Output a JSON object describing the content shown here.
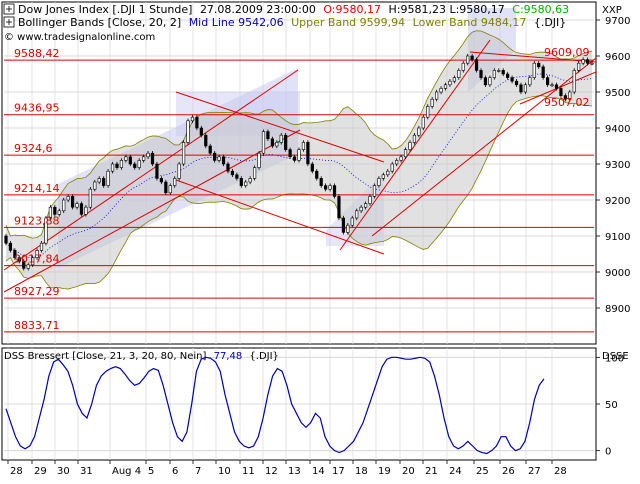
{
  "header": {
    "line1_title": "Dow Jones Index [.DJI  1 Stunde]",
    "line1_datetime": "27.08.2009 23:00:00",
    "line1_open": "O:9580,17",
    "line1_high": "H:9581,23",
    "line1_low": "L:9580,17",
    "line1_close": "C:9580,63",
    "line2_title": "Bollinger Bands [Close, 20, 2]",
    "line2_mid": "Mid Line 9542,06",
    "line2_upper": "Upper Band 9599,94",
    "line2_lower": "Lower Band 9484,17",
    "line2_symbol": "{.DJI}",
    "line3_copyright": "© www.tradesignalonline.com"
  },
  "main_pane": {
    "axis_label": "XXP",
    "ylim": [
      8800,
      9750
    ],
    "y_ticks": [
      9700,
      9600,
      9500,
      9400,
      9300,
      9200,
      9100,
      9000,
      8900
    ],
    "y_tick_labels": [
      "9700",
      "9600",
      "9500",
      "9400",
      "9300",
      "9200",
      "9100",
      "9000",
      "8900"
    ],
    "horizontal_levels": [
      {
        "value": 9588.42,
        "label": "9588,42"
      },
      {
        "value": 9436.95,
        "label": "9436,95"
      },
      {
        "value": 9324.6,
        "label": "9324,6"
      },
      {
        "value": 9214.14,
        "label": "9214,14"
      },
      {
        "value": 9123.88,
        "label": "9123,88"
      },
      {
        "value": 9017.84,
        "label": "9017,84"
      },
      {
        "value": 8927.29,
        "label": "8927,29"
      },
      {
        "value": 8833.71,
        "label": "8833,71"
      }
    ],
    "trend_labels": [
      {
        "value": 9609.09,
        "label": "9609,09"
      },
      {
        "value": 9507.02,
        "label": "9507,02"
      }
    ]
  },
  "lower_pane": {
    "indicator_label": "DSS Bressert [Close, 21, 3, 20, 80, Nein]",
    "indicator_value": "77,48",
    "indicator_symbol": "{.DJI}",
    "axis_label": "DSSE",
    "ylim": [
      -10,
      110
    ],
    "y_ticks": [
      100,
      50,
      0
    ],
    "y_tick_labels": [
      "100",
      "50",
      "0"
    ]
  },
  "x_axis": {
    "labels": [
      "28",
      "29",
      "30",
      "31",
      "Aug 4",
      "5",
      "6",
      "7",
      "10",
      "11",
      "12",
      "13",
      "14",
      "17",
      "18",
      "19",
      "20",
      "21",
      "24",
      "25",
      "26",
      "27",
      "28"
    ]
  },
  "chart_data": [
    {
      "type": "candlestick",
      "title": "Dow Jones Index [.DJI  1 Stunde]",
      "ylim": [
        8800,
        9750
      ],
      "x": [
        "28",
        "28",
        "28",
        "28",
        "28",
        "28",
        "29",
        "29",
        "29",
        "29",
        "29",
        "29",
        "30",
        "30",
        "30",
        "30",
        "30",
        "30",
        "31",
        "31",
        "31",
        "31",
        "31",
        "31",
        "Aug 4",
        "Aug 4",
        "Aug 4",
        "Aug 4",
        "Aug 4",
        "Aug 4",
        "5",
        "5",
        "5",
        "5",
        "5",
        "5",
        "6",
        "6",
        "6",
        "6",
        "6",
        "6",
        "7",
        "7",
        "7",
        "7",
        "7",
        "7",
        "10",
        "10",
        "10",
        "10",
        "10",
        "10",
        "11",
        "11",
        "11",
        "11",
        "11",
        "11",
        "12",
        "12",
        "12",
        "12",
        "12",
        "12",
        "13",
        "13",
        "13",
        "13",
        "13",
        "13",
        "14",
        "14",
        "14",
        "14",
        "14",
        "14",
        "17",
        "17",
        "17",
        "17",
        "17",
        "17",
        "18",
        "18",
        "18",
        "18",
        "18",
        "18",
        "19",
        "19",
        "19",
        "19",
        "19",
        "19",
        "20",
        "20",
        "20",
        "20",
        "20",
        "20",
        "21",
        "21",
        "21",
        "21",
        "21",
        "21",
        "24",
        "24",
        "24",
        "24",
        "24",
        "24",
        "25",
        "25",
        "25",
        "25",
        "25",
        "25",
        "26",
        "26",
        "26",
        "26",
        "26",
        "26",
        "27",
        "27",
        "27",
        "27",
        "27",
        "27",
        "28"
      ],
      "close": [
        9080,
        9060,
        9040,
        9030,
        9010,
        9020,
        9040,
        9060,
        9080,
        9150,
        9180,
        9160,
        9170,
        9200,
        9210,
        9180,
        9190,
        9160,
        9180,
        9230,
        9250,
        9260,
        9240,
        9280,
        9300,
        9290,
        9310,
        9320,
        9300,
        9290,
        9310,
        9320,
        9330,
        9300,
        9260,
        9250,
        9220,
        9240,
        9260,
        9300,
        9360,
        9420,
        9430,
        9400,
        9380,
        9350,
        9330,
        9310,
        9320,
        9300,
        9280,
        9270,
        9260,
        9240,
        9250,
        9260,
        9290,
        9330,
        9390,
        9370,
        9350,
        9360,
        9380,
        9340,
        9320,
        9310,
        9340,
        9360,
        9300,
        9280,
        9260,
        9240,
        9230,
        9240,
        9210,
        9150,
        9110,
        9130,
        9150,
        9170,
        9180,
        9190,
        9210,
        9240,
        9260,
        9270,
        9280,
        9300,
        9310,
        9320,
        9340,
        9360,
        9380,
        9400,
        9430,
        9460,
        9480,
        9500,
        9510,
        9520,
        9530,
        9540,
        9560,
        9580,
        9600,
        9590,
        9560,
        9540,
        9520,
        9540,
        9560,
        9560,
        9550,
        9540,
        9530,
        9520,
        9500,
        9520,
        9540,
        9580,
        9570,
        9540,
        9520,
        9520,
        9510,
        9490,
        9480,
        9500,
        9560,
        9580,
        9590,
        9580,
        9580
      ],
      "open": [
        9100,
        9080,
        9060,
        9040,
        9030,
        9010,
        9020,
        9040,
        9060,
        9080,
        9150,
        9180,
        9160,
        9170,
        9200,
        9210,
        9180,
        9190,
        9160,
        9180,
        9230,
        9250,
        9260,
        9240,
        9280,
        9300,
        9290,
        9310,
        9320,
        9300,
        9290,
        9310,
        9320,
        9330,
        9300,
        9260,
        9250,
        9220,
        9240,
        9260,
        9300,
        9360,
        9420,
        9430,
        9400,
        9380,
        9350,
        9330,
        9310,
        9320,
        9300,
        9280,
        9270,
        9260,
        9240,
        9250,
        9260,
        9290,
        9330,
        9390,
        9370,
        9350,
        9360,
        9380,
        9340,
        9320,
        9310,
        9340,
        9360,
        9300,
        9280,
        9260,
        9240,
        9230,
        9240,
        9210,
        9150,
        9110,
        9130,
        9150,
        9170,
        9180,
        9190,
        9210,
        9240,
        9260,
        9270,
        9280,
        9300,
        9310,
        9320,
        9340,
        9360,
        9380,
        9400,
        9430,
        9460,
        9480,
        9500,
        9510,
        9520,
        9530,
        9540,
        9560,
        9580,
        9600,
        9590,
        9560,
        9540,
        9520,
        9540,
        9560,
        9560,
        9550,
        9540,
        9530,
        9520,
        9500,
        9520,
        9540,
        9580,
        9570,
        9540,
        9520,
        9520,
        9510,
        9490,
        9480,
        9500,
        9560,
        9580,
        9590,
        9580
      ]
    },
    {
      "type": "line",
      "title": "DSS Bressert [Close, 21, 3, 20, 80, Nein]",
      "ylim": [
        -10,
        110
      ],
      "values": [
        45,
        30,
        15,
        5,
        2,
        5,
        15,
        35,
        55,
        80,
        95,
        98,
        92,
        85,
        70,
        50,
        40,
        35,
        50,
        70,
        80,
        85,
        88,
        90,
        88,
        82,
        75,
        70,
        72,
        78,
        85,
        88,
        86,
        70,
        50,
        30,
        15,
        10,
        20,
        50,
        85,
        98,
        100,
        99,
        95,
        85,
        60,
        40,
        20,
        10,
        5,
        3,
        5,
        15,
        35,
        60,
        80,
        88,
        85,
        70,
        50,
        40,
        30,
        25,
        30,
        40,
        35,
        15,
        5,
        0,
        -2,
        0,
        5,
        10,
        20,
        30,
        45,
        60,
        75,
        90,
        98,
        100,
        100,
        99,
        98,
        98,
        99,
        100,
        99,
        95,
        80,
        60,
        35,
        15,
        5,
        2,
        5,
        10,
        5,
        0,
        -2,
        -3,
        0,
        5,
        15,
        15,
        5,
        0,
        2,
        10,
        30,
        55,
        70,
        77
      ]
    }
  ]
}
